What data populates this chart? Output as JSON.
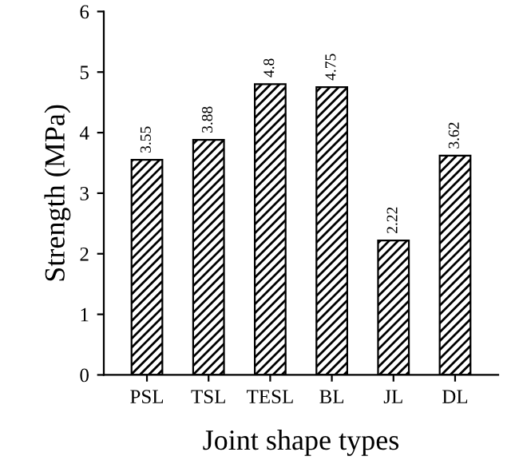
{
  "chart_data": {
    "type": "bar",
    "xlabel": "Joint shape types",
    "ylabel": "Strength (MPa)",
    "categories": [
      "PSL",
      "TSL",
      "TESL",
      "BL",
      "JL",
      "DL"
    ],
    "values": [
      3.55,
      3.88,
      4.8,
      4.75,
      2.22,
      3.62
    ],
    "color": "#000000",
    "data_labels": true,
    "ylim": [
      0,
      6
    ],
    "yticks": [
      0,
      1,
      2,
      3,
      4,
      5,
      6
    ],
    "grid": false,
    "legend": false
  }
}
